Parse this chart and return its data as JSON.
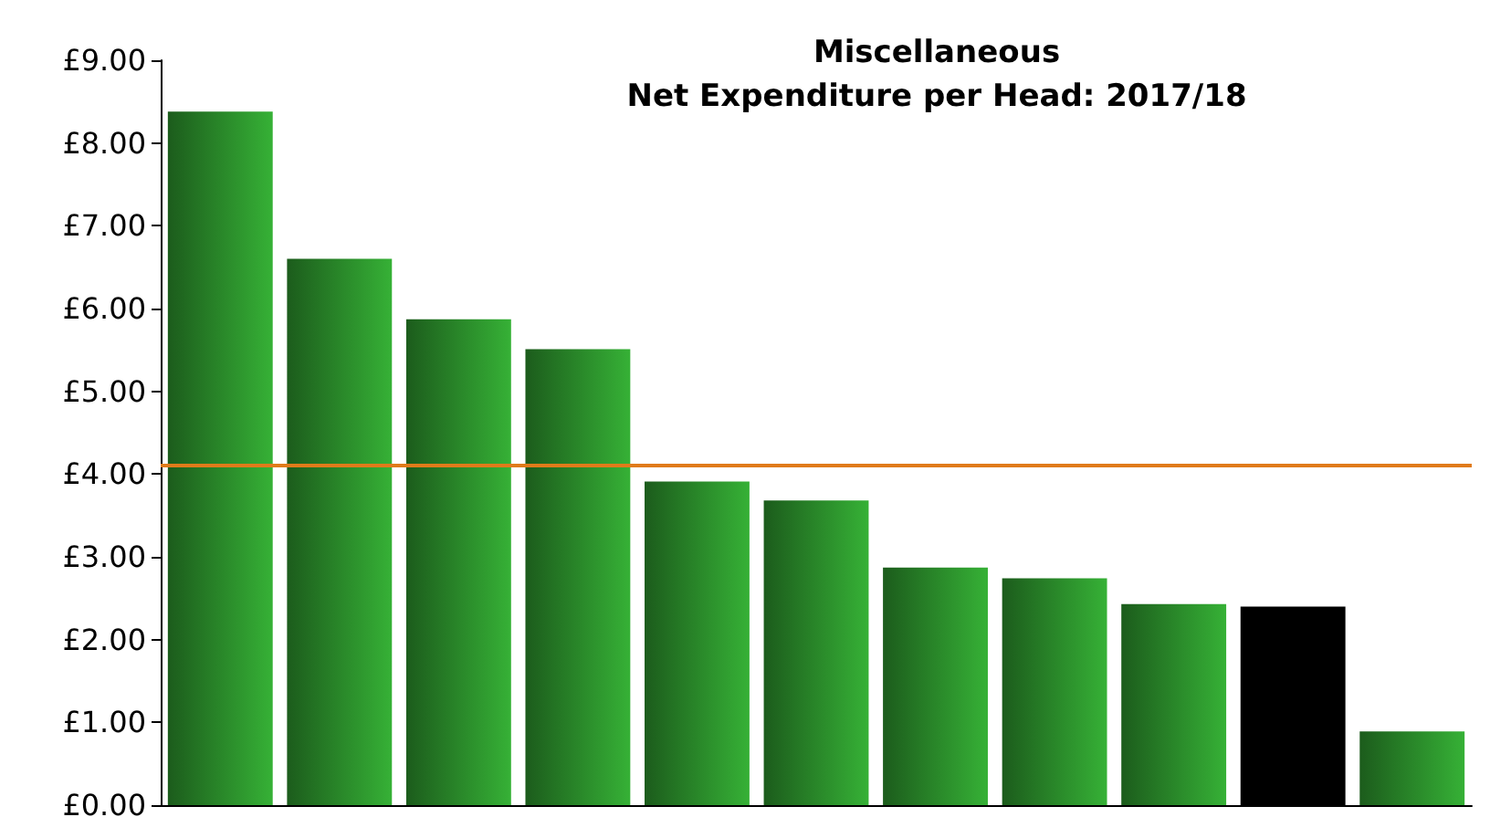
{
  "chart_data": {
    "type": "bar",
    "title": "Miscellaneous\nNet Expenditure per Head: 2017/18",
    "categories": [
      null,
      null,
      null,
      null,
      null,
      null,
      null,
      null,
      null,
      null,
      null
    ],
    "values": [
      8.38,
      6.6,
      5.87,
      5.51,
      3.91,
      3.68,
      2.87,
      2.74,
      2.43,
      2.4,
      0.89
    ],
    "colors": [
      "#2f9a2f",
      "#2f9a2f",
      "#2f9a2f",
      "#2f9a2f",
      "#2f9a2f",
      "#2f9a2f",
      "#2f9a2f",
      "#2f9a2f",
      "#2f9a2f",
      "#000000",
      "#2f9a2f"
    ],
    "ylim": [
      0,
      9
    ],
    "yticks": [
      {
        "value": 0,
        "label": "£0.00"
      },
      {
        "value": 1,
        "label": "£1.00"
      },
      {
        "value": 2,
        "label": "£2.00"
      },
      {
        "value": 3,
        "label": "£3.00"
      },
      {
        "value": 4,
        "label": "£4.00"
      },
      {
        "value": 5,
        "label": "£5.00"
      },
      {
        "value": 6,
        "label": "£6.00"
      },
      {
        "value": 7,
        "label": "£7.00"
      },
      {
        "value": 8,
        "label": "£8.00"
      },
      {
        "value": 9,
        "label": "£9.00"
      }
    ],
    "ref_lines": [
      {
        "axis": "y",
        "value": 4.11,
        "color": "#e07b1a"
      }
    ],
    "grid": false
  }
}
